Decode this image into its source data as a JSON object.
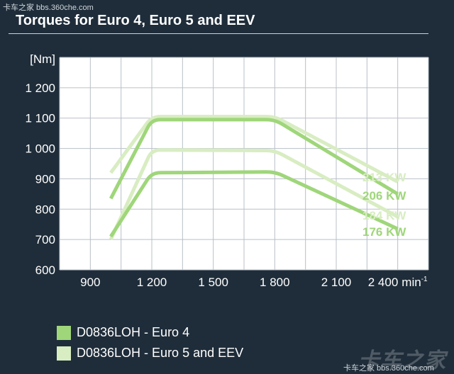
{
  "watermark_top": "卡车之家 bbs.360che.com",
  "watermark_logo": "卡车之家",
  "watermark_bottom": "卡车之家 bbs.360che.com",
  "colors": {
    "background": "#1f2d3a",
    "plot_area": "#ffffff",
    "euro4": "#9fd67a",
    "euro5": "#d8edc2",
    "grid": "#b9c0c7"
  },
  "chart_data": {
    "type": "line",
    "title": "Torques for Euro 4, Euro 5 and EEV",
    "ylabel": "[Nm]",
    "xunit": "min",
    "xunit_sup": "-1",
    "xlim": [
      750,
      2550
    ],
    "ylim": [
      600,
      1300
    ],
    "xticks": [
      900,
      1200,
      1500,
      1800,
      2100,
      2400
    ],
    "xtick_labels": [
      "900",
      "1 200",
      "1 500",
      "1 800",
      "2 100",
      "2 400"
    ],
    "yticks": [
      600,
      700,
      800,
      900,
      1000,
      1100,
      1200
    ],
    "ytick_labels": [
      "600",
      "700",
      "800",
      "900",
      "1 000",
      "1 100",
      "1 200"
    ],
    "grid": true,
    "series": [
      {
        "name": "213 KW",
        "group": "euro5",
        "x": [
          1000,
          1200,
          1800,
          2400
        ],
        "y": [
          920,
          1105,
          1105,
          890
        ]
      },
      {
        "name": "206 KW",
        "group": "euro4",
        "x": [
          1000,
          1200,
          1800,
          2400
        ],
        "y": [
          835,
          1095,
          1095,
          850
        ]
      },
      {
        "name": "184 KW",
        "group": "euro5",
        "x": [
          1000,
          1200,
          1800,
          2400
        ],
        "y": [
          700,
          995,
          993,
          775
        ]
      },
      {
        "name": "176 KW",
        "group": "euro4",
        "x": [
          1000,
          1200,
          1800,
          2400
        ],
        "y": [
          710,
          920,
          923,
          735
        ]
      }
    ],
    "legend": [
      {
        "label": "D0836LOH - Euro 4",
        "group": "euro4"
      },
      {
        "label": "D0836LOH - Euro 5 and EEV",
        "group": "euro5"
      }
    ],
    "legend_position": "bottom-left"
  }
}
